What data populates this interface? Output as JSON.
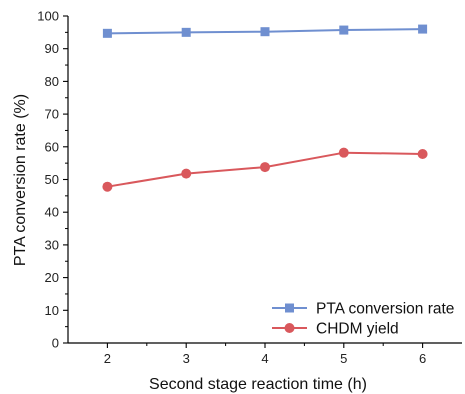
{
  "chart_data": {
    "type": "line",
    "xlabel": "Second stage reaction time (h)",
    "ylabel": "PTA conversion rate (%)",
    "x": [
      2,
      3,
      4,
      5,
      6
    ],
    "xlim": [
      1.5,
      6.5
    ],
    "ylim": [
      0,
      100
    ],
    "xticks": [
      "2",
      "3",
      "4",
      "5",
      "6"
    ],
    "yticks": [
      "0",
      "10",
      "20",
      "30",
      "40",
      "50",
      "60",
      "70",
      "80",
      "90",
      "100"
    ],
    "grid": false,
    "legend_position": "bottom-right",
    "series": [
      {
        "name": "PTA conversion rate",
        "values": [
          94.7,
          95.0,
          95.2,
          95.7,
          96.0
        ],
        "color": "#6f8fd0",
        "marker": "square"
      },
      {
        "name": "CHDM  yield",
        "values": [
          47.8,
          51.8,
          53.8,
          58.2,
          57.8
        ],
        "color": "#d9585c",
        "marker": "circle"
      }
    ]
  }
}
